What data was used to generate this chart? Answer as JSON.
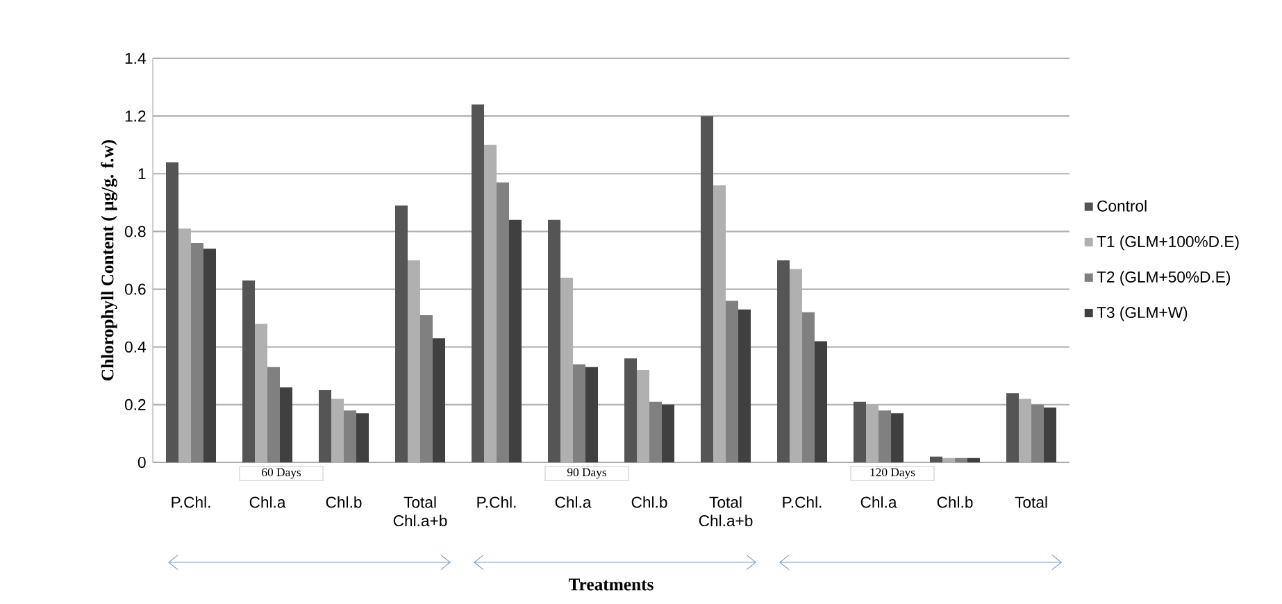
{
  "chart_data": {
    "type": "bar",
    "xlabel": "Treatments",
    "ylabel": "Chlorophyll Content ( µg/g. f.w)",
    "categories": [
      "P.Chl.",
      "Chl.a",
      "Chl.b",
      "Total Chl.a+b",
      "P.Chl.",
      "Chl.a",
      "Chl.b",
      "Total Chl.a+b",
      "P.Chl.",
      "Chl.a",
      "Chl.b",
      "Total"
    ],
    "series": [
      {
        "name": "Control",
        "color": "#555555",
        "values": [
          1.04,
          0.63,
          0.25,
          0.89,
          1.24,
          0.84,
          0.36,
          1.2,
          0.7,
          0.21,
          0.02,
          0.24
        ]
      },
      {
        "name": "T1 (GLM+100%D.E)",
        "color": "#b0b0b0",
        "values": [
          0.81,
          0.48,
          0.22,
          0.7,
          1.1,
          0.64,
          0.32,
          0.96,
          0.67,
          0.2,
          0.015,
          0.22
        ]
      },
      {
        "name": "T2 (GLM+50%D.E)",
        "color": "#808080",
        "values": [
          0.76,
          0.33,
          0.18,
          0.51,
          0.97,
          0.34,
          0.21,
          0.56,
          0.52,
          0.18,
          0.015,
          0.2
        ]
      },
      {
        "name": "T3 (GLM+W)",
        "color": "#404040",
        "values": [
          0.74,
          0.26,
          0.17,
          0.43,
          0.84,
          0.33,
          0.2,
          0.53,
          0.42,
          0.17,
          0.015,
          0.19
        ]
      }
    ],
    "ylim": [
      0,
      1.4
    ],
    "yticks": [
      0,
      0.2,
      0.4,
      0.6,
      0.8,
      1,
      1.2,
      1.4
    ],
    "grid": "y",
    "legend": "right",
    "annotations": [
      "60 Days",
      "90 Days",
      "120 Days"
    ]
  }
}
